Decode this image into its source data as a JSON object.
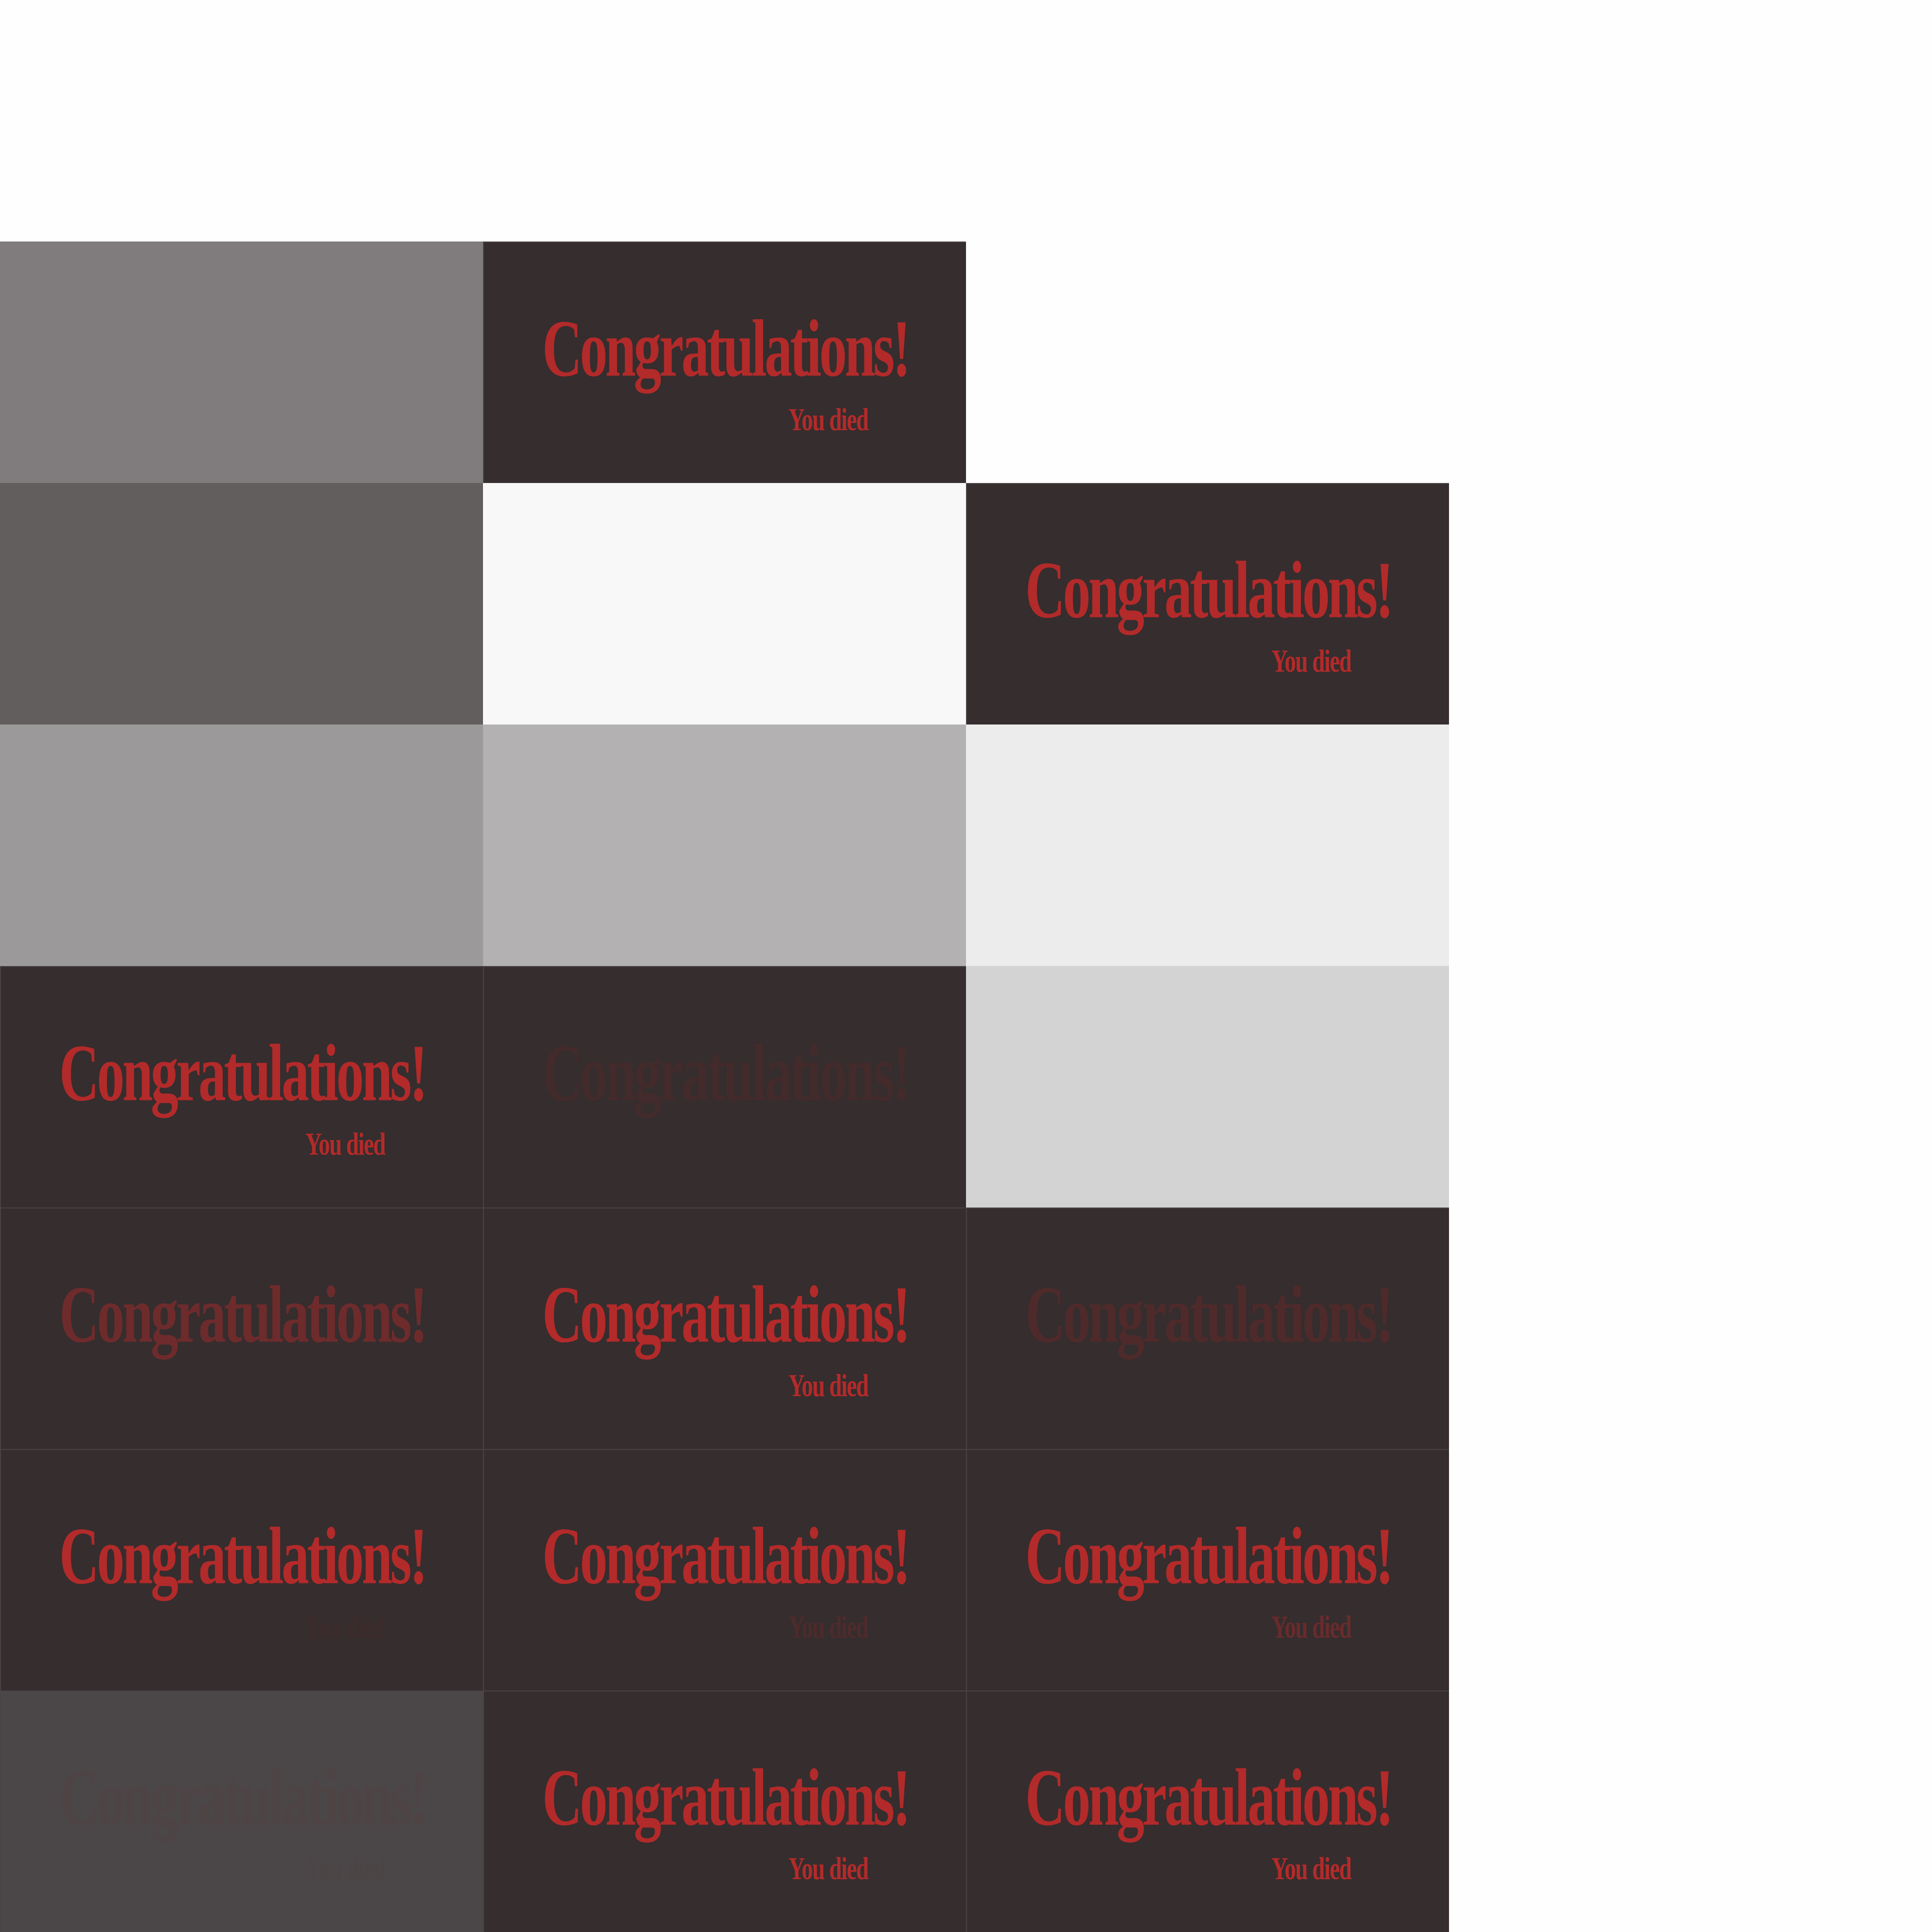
{
  "sprite_sheet": {
    "background": "#fefefe",
    "frames": [
      {
        "row": 1,
        "col": 0,
        "bg": "#807c7d"
      },
      {
        "row": 1,
        "col": 1,
        "bg": "#352d2e",
        "title": "Congratulations!",
        "subtitle": "You died",
        "title_color": "#b32a2a",
        "subtitle_color": "#b32a2a"
      },
      {
        "row": 2,
        "col": 0,
        "bg": "#625e5e"
      },
      {
        "row": 2,
        "col": 1,
        "bg": "#f8f8f8"
      },
      {
        "row": 2,
        "col": 2,
        "bg": "#352d2e",
        "title": "Congratulations!",
        "subtitle": "You died",
        "title_color": "#b32a2a",
        "subtitle_color": "#b32a2a"
      },
      {
        "row": 3,
        "col": 0,
        "bg": "#9b999a"
      },
      {
        "row": 3,
        "col": 1,
        "bg": "#b3b1b2"
      },
      {
        "row": 3,
        "col": 2,
        "bg": "#ececec"
      },
      {
        "row": 4,
        "col": 0,
        "bg": "#352d2e",
        "title": "Congratulations!",
        "subtitle": "You died",
        "title_color": "#b32a2a",
        "subtitle_color": "#b32a2a"
      },
      {
        "row": 4,
        "col": 1,
        "bg": "#352d2e",
        "title": "Congratulations!",
        "title_color": "#432a2b"
      },
      {
        "row": 4,
        "col": 2,
        "bg": "#d4d3d4"
      },
      {
        "row": 5,
        "col": 0,
        "bg": "#352d2e",
        "title": "Congratulations!",
        "title_color": "#6e2b2c"
      },
      {
        "row": 5,
        "col": 1,
        "bg": "#352d2e",
        "title": "Congratulations!",
        "subtitle": "You died",
        "title_color": "#b32a2a",
        "subtitle_color": "#b32a2a"
      },
      {
        "row": 5,
        "col": 2,
        "bg": "#352d2e",
        "title": "Congratulations!",
        "title_color": "#4f2a2b"
      },
      {
        "row": 6,
        "col": 0,
        "bg": "#352d2e",
        "title": "Congratulations!",
        "subtitle": "You died",
        "title_color": "#b32a2a",
        "subtitle_color": "#3d2a2b"
      },
      {
        "row": 6,
        "col": 1,
        "bg": "#352d2e",
        "title": "Congratulations!",
        "subtitle": "You died",
        "title_color": "#b32a2a",
        "subtitle_color": "#4e2a2b"
      },
      {
        "row": 6,
        "col": 2,
        "bg": "#352d2e",
        "title": "Congratulations!",
        "subtitle": "You died",
        "title_color": "#b32a2a",
        "subtitle_color": "#682b2c"
      },
      {
        "row": 7,
        "col": 0,
        "bg": "#4b4647",
        "title": "Congratulations!",
        "subtitle": "You died",
        "title_color": "#4e4445",
        "subtitle_color": "#4c4546"
      },
      {
        "row": 7,
        "col": 1,
        "bg": "#352d2e",
        "title": "Congratulations!",
        "subtitle": "You died",
        "title_color": "#b32a2a",
        "subtitle_color": "#b32a2a"
      },
      {
        "row": 7,
        "col": 2,
        "bg": "#352d2e",
        "title": "Congratulations!",
        "subtitle": "You died",
        "title_color": "#b32a2a",
        "subtitle_color": "#b32a2a"
      }
    ]
  }
}
